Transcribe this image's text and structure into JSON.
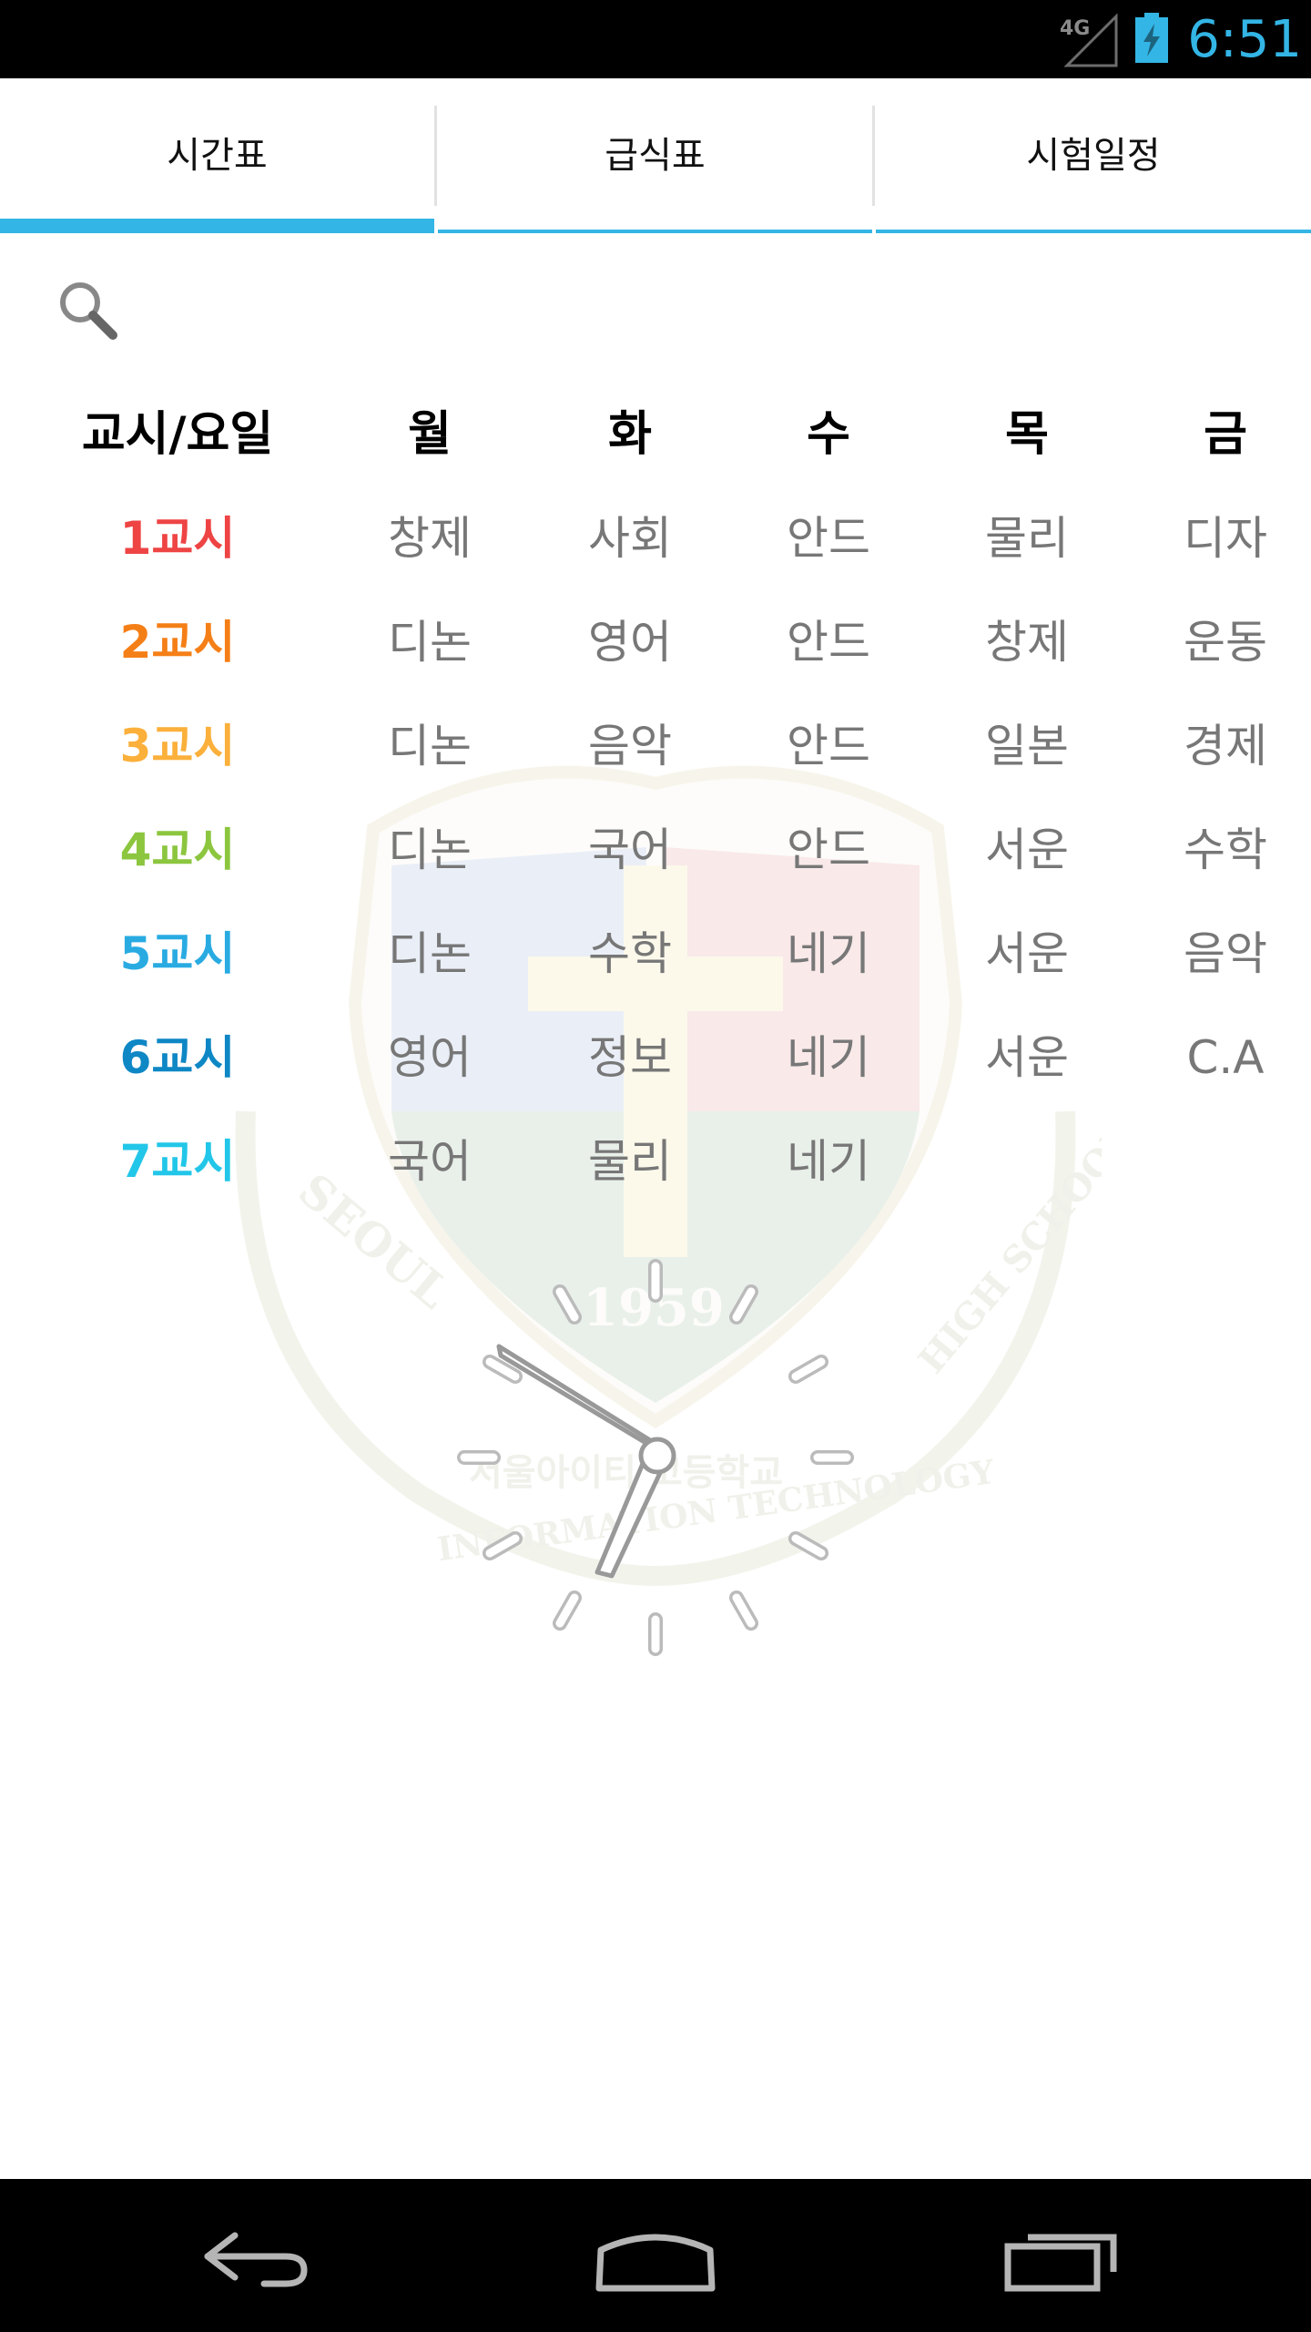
{
  "status_bar": {
    "network": "4G",
    "time": "6:51"
  },
  "tabs": [
    {
      "label": "시간표",
      "selected": true
    },
    {
      "label": "급식표",
      "selected": false
    },
    {
      "label": "시험일정",
      "selected": false
    }
  ],
  "timetable": {
    "header": [
      "교시/요일",
      "월",
      "화",
      "수",
      "목",
      "금"
    ],
    "periods": [
      {
        "label": "1교시",
        "color": "#ee4444",
        "subjects": [
          "창제",
          "사회",
          "안드",
          "물리",
          "디자"
        ]
      },
      {
        "label": "2교시",
        "color": "#f57f17",
        "subjects": [
          "디논",
          "영어",
          "안드",
          "창제",
          "운동"
        ]
      },
      {
        "label": "3교시",
        "color": "#fbb03b",
        "subjects": [
          "디논",
          "음악",
          "안드",
          "일본",
          "경제"
        ]
      },
      {
        "label": "4교시",
        "color": "#8cc63f",
        "subjects": [
          "디논",
          "국어",
          "안드",
          "서운",
          "수학"
        ]
      },
      {
        "label": "5교시",
        "color": "#29abe2",
        "subjects": [
          "디논",
          "수학",
          "네기",
          "서운",
          "음악"
        ]
      },
      {
        "label": "6교시",
        "color": "#0e87c5",
        "subjects": [
          "영어",
          "정보",
          "네기",
          "서운",
          "C.A"
        ]
      },
      {
        "label": "7교시",
        "color": "#22c6e8",
        "subjects": [
          "국어",
          "물리",
          "네기",
          "",
          ""
        ]
      }
    ]
  },
  "watermark": {
    "arc_left": "SEOUL",
    "arc_right": "HIGH SCHOOL",
    "arc_bottom": "INFORMATION TECHNOLOGY",
    "arc_korean": "서울아이티 고등학교",
    "year": "1959"
  },
  "colors": {
    "accent": "#33b5e5",
    "status_bar": "#000000",
    "nav_bar": "#000000"
  },
  "icons": {
    "search": "search-icon",
    "back": "back-icon",
    "home": "home-icon",
    "recents": "recents-icon",
    "signal": "signal-icon",
    "battery": "battery-charging-icon"
  }
}
